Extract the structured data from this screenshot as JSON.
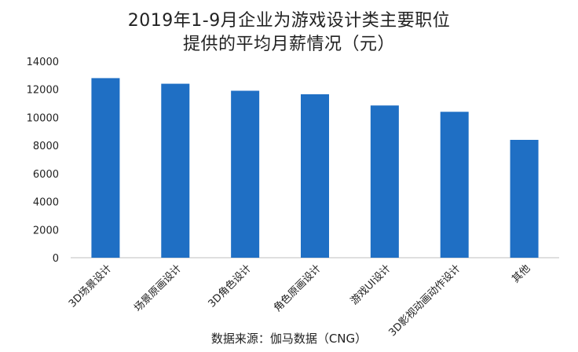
{
  "header": {
    "title_line1": "2019年1-9月企业为游戏设计类主要职位",
    "title_line2": "提供的平均月薪情况（元）"
  },
  "footer": {
    "source": "数据来源：伽马数据（CNG）"
  },
  "colors": {
    "bar": "#1f6fc4",
    "axis": "#bfbfbf"
  },
  "chart_data": {
    "type": "bar",
    "title": "2019年1-9月企业为游戏设计类主要职位提供的平均月薪情况（元）",
    "categories": [
      "3D场景设计",
      "场景原画设计",
      "3D角色设计",
      "角色原画设计",
      "游戏UI设计",
      "3D影视动画动作设计",
      "其他"
    ],
    "values": [
      12800,
      12400,
      11900,
      11650,
      10850,
      10400,
      8400
    ],
    "yticks": [
      0,
      2000,
      4000,
      6000,
      8000,
      10000,
      12000,
      14000
    ],
    "ylim": [
      0,
      14000
    ],
    "xlabel": "",
    "ylabel": "",
    "grid": false
  }
}
